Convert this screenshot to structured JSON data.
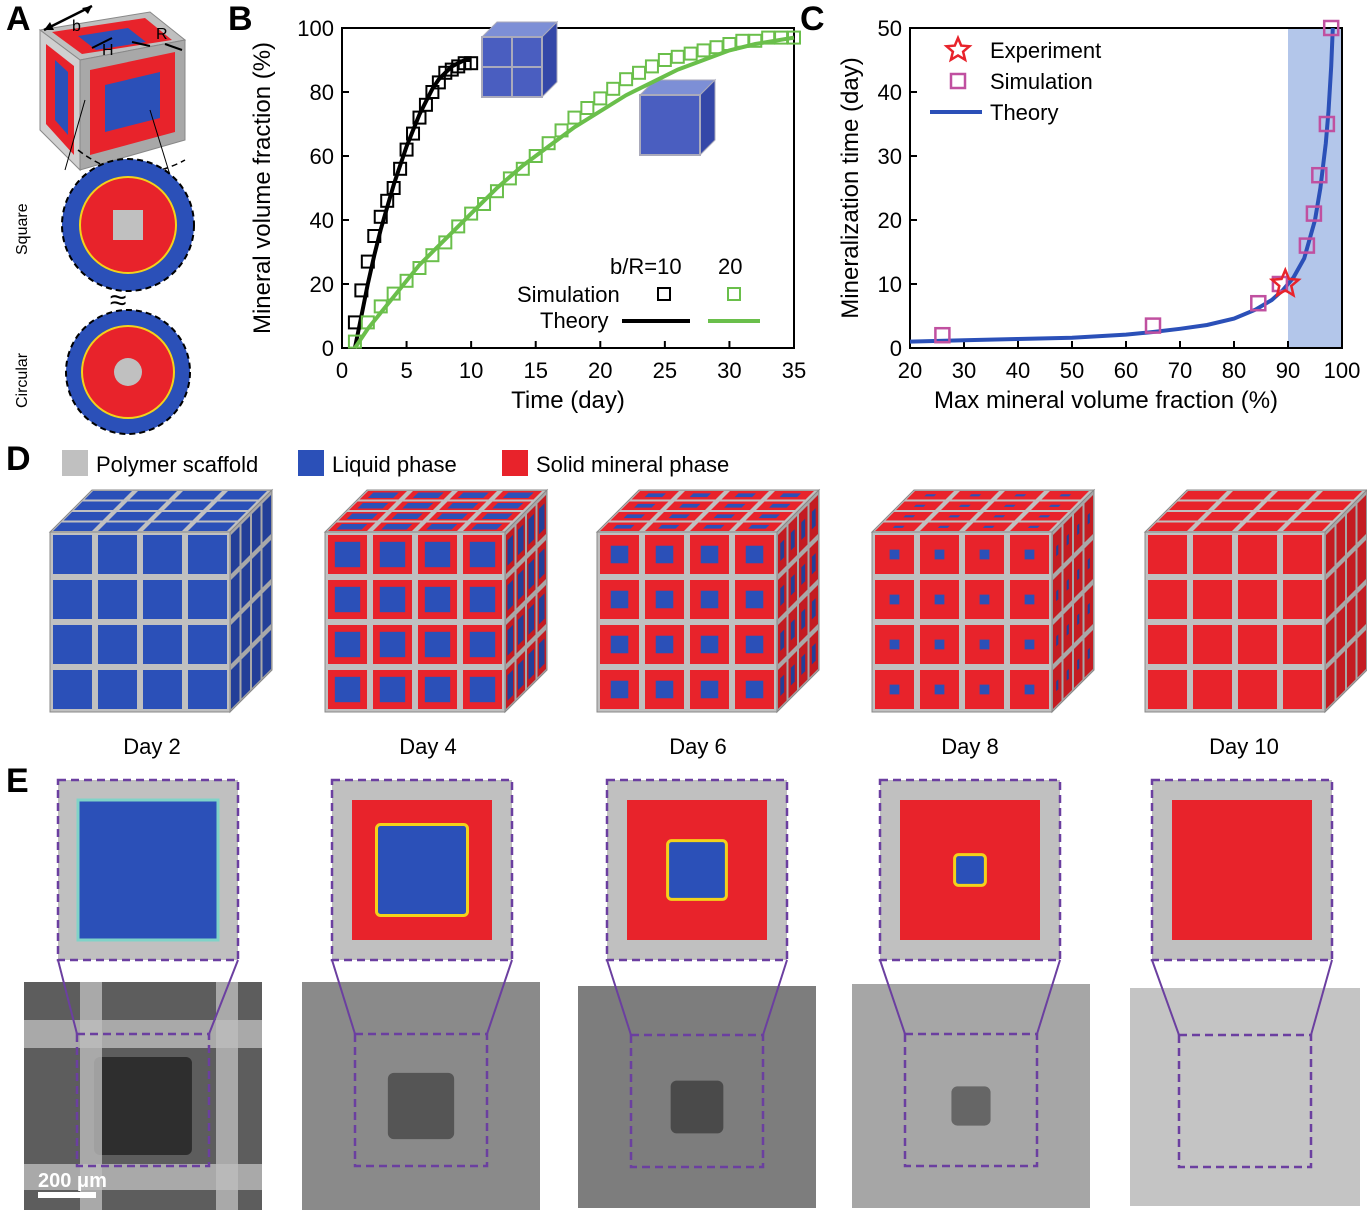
{
  "panels": {
    "a": "A",
    "b": "B",
    "c": "C",
    "d": "D",
    "e": "E"
  },
  "panel_a": {
    "labels": {
      "b": "b",
      "h": "H",
      "r": "R"
    },
    "square_label": "Square",
    "circular_label": "Circular",
    "approx_symbol": "≈"
  },
  "chart_data": [
    {
      "type": "line",
      "panel": "B",
      "xlabel": "Time (day)",
      "ylabel": "Mineral volume fraction (%)",
      "xlim": [
        0,
        35
      ],
      "ylim": [
        0,
        100
      ],
      "xticks": [
        0,
        5,
        10,
        15,
        20,
        25,
        30,
        35
      ],
      "yticks": [
        0,
        20,
        40,
        60,
        80,
        100
      ],
      "legend": {
        "header_10": "b/R=10",
        "header_20": "20",
        "simulation": "Simulation",
        "theory": "Theory"
      },
      "series": [
        {
          "name": "Simulation b/R=10",
          "kind": "scatter",
          "color": "#000000",
          "x": [
            1.0,
            1.5,
            2.0,
            2.5,
            3.0,
            3.5,
            4.0,
            4.5,
            5.0,
            5.5,
            6.0,
            6.5,
            7.0,
            7.5,
            8.0,
            8.5,
            9.0,
            9.5,
            10.0
          ],
          "y": [
            8,
            18,
            27,
            35,
            41,
            46,
            50,
            56,
            62,
            67,
            72,
            76,
            80,
            83,
            86,
            87,
            88,
            89,
            89
          ]
        },
        {
          "name": "Theory b/R=10",
          "kind": "line",
          "color": "#000000",
          "x": [
            1,
            1.5,
            2,
            2.5,
            3,
            3.5,
            4,
            4.5,
            5,
            5.5,
            6,
            6.5,
            7,
            7.5,
            8,
            8.5,
            9,
            9.5,
            10
          ],
          "y": [
            0,
            10,
            20,
            29,
            37,
            44,
            51,
            57,
            63,
            68,
            73,
            77,
            81,
            84,
            86,
            88,
            89,
            90,
            90
          ]
        },
        {
          "name": "Simulation b/R=20",
          "kind": "scatter",
          "color": "#6abf4b",
          "x": [
            1,
            2,
            3,
            4,
            5,
            6,
            7,
            8,
            9,
            10,
            11,
            12,
            13,
            14,
            15,
            16,
            17,
            18,
            19,
            20,
            21,
            22,
            23,
            24,
            25,
            26,
            27,
            28,
            29,
            30,
            31,
            32,
            33,
            34,
            35
          ],
          "y": [
            2,
            8,
            13,
            17,
            21,
            25,
            29,
            33,
            38,
            42,
            45,
            49,
            53,
            56,
            60,
            64,
            68,
            72,
            75,
            78,
            81,
            84,
            86,
            88,
            90,
            91,
            92,
            93,
            94,
            95,
            96,
            96,
            97,
            97,
            97
          ]
        },
        {
          "name": "Theory b/R=20",
          "kind": "line",
          "color": "#6abf4b",
          "x": [
            1,
            2,
            3,
            4,
            5,
            6,
            7,
            8,
            9,
            10,
            12,
            14,
            16,
            18,
            20,
            22,
            24,
            26,
            28,
            30,
            32,
            35
          ],
          "y": [
            0,
            6,
            11,
            16,
            21,
            26,
            30,
            34,
            38,
            42,
            50,
            57,
            63,
            69,
            74,
            79,
            83,
            87,
            90,
            93,
            95,
            97
          ]
        }
      ]
    },
    {
      "type": "scatter",
      "panel": "C",
      "xlabel": "Max mineral volume fraction (%)",
      "ylabel": "Mineralization time (day)",
      "xlim": [
        20,
        100
      ],
      "ylim": [
        0,
        50
      ],
      "xticks": [
        20,
        30,
        40,
        50,
        60,
        70,
        80,
        90,
        100
      ],
      "yticks": [
        0,
        10,
        20,
        30,
        40,
        50
      ],
      "shaded_region": [
        90,
        100
      ],
      "legend": {
        "experiment": "Experiment",
        "simulation": "Simulation",
        "theory": "Theory"
      },
      "series": [
        {
          "name": "Experiment",
          "kind": "star",
          "color": "#e8232b",
          "x": [
            89.5
          ],
          "y": [
            10
          ]
        },
        {
          "name": "Simulation",
          "kind": "square",
          "color": "#c050a0",
          "x": [
            26,
            65,
            84.5,
            88.5,
            93.5,
            94.8,
            95.8,
            97.2,
            98
          ],
          "y": [
            2,
            3.5,
            7,
            10,
            16,
            21,
            27,
            35,
            50
          ]
        },
        {
          "name": "Theory",
          "kind": "line",
          "color": "#2b50b8",
          "x": [
            20,
            30,
            40,
            50,
            60,
            65,
            70,
            75,
            80,
            84,
            87,
            89,
            91,
            93,
            95,
            96,
            97,
            97.5,
            98,
            98.3
          ],
          "y": [
            1,
            1.2,
            1.4,
            1.6,
            2.1,
            2.5,
            3,
            3.6,
            4.6,
            6,
            7.5,
            9,
            11,
            14,
            20,
            25,
            32,
            37,
            44,
            50
          ]
        }
      ]
    }
  ],
  "panel_d": {
    "legend": {
      "scaffold": "Polymer scaffold",
      "liquid": "Liquid phase",
      "solid": "Solid mineral phase"
    },
    "days": [
      "Day 2",
      "Day 4",
      "Day 6",
      "Day 8",
      "Day 10"
    ],
    "colors": {
      "scaffold": "#c0c0c0",
      "liquid": "#2b50b8",
      "solid": "#e8232b"
    }
  },
  "panel_e": {
    "scale_bar": "200 μm"
  }
}
